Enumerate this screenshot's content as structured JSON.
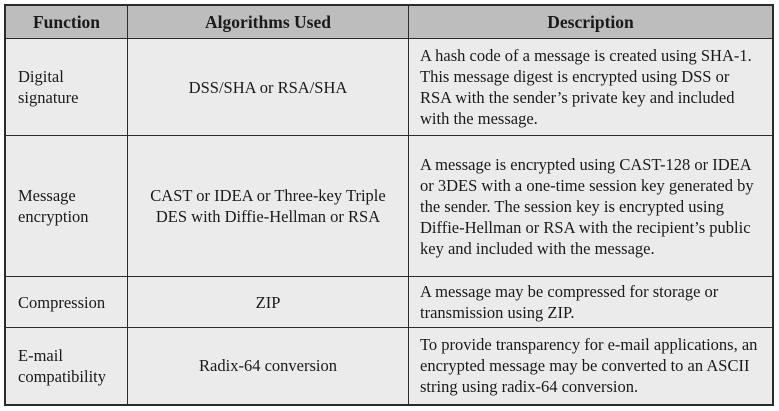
{
  "table": {
    "headers": {
      "function": "Function",
      "algorithms": "Algorithms Used",
      "description": "Description"
    },
    "rows": [
      {
        "function": "Digital signature",
        "algorithms": "DSS/SHA or RSA/SHA",
        "description": "A hash code of a message is created using SHA-1. This message digest is encrypted using DSS or RSA with the sender’s private key and included with the message."
      },
      {
        "function": "Message encryption",
        "algorithms": "CAST or IDEA or Three-key Triple DES with Diffie-Hellman or RSA",
        "description": "A message is encrypted using CAST-128 or IDEA or 3DES with a one-time session key generated by the sender. The session key is encrypted using Diffie-Hellman or RSA with the recipient’s public key and included with the message."
      },
      {
        "function": "Compression",
        "algorithms": "ZIP",
        "description": "A message may be compressed for storage or transmission using ZIP."
      },
      {
        "function": "E-mail compatibility",
        "algorithms": "Radix-64 conversion",
        "description": "To provide transparency for e-mail applications, an encrypted message may be converted to an ASCII string using radix-64 conversion."
      }
    ]
  }
}
